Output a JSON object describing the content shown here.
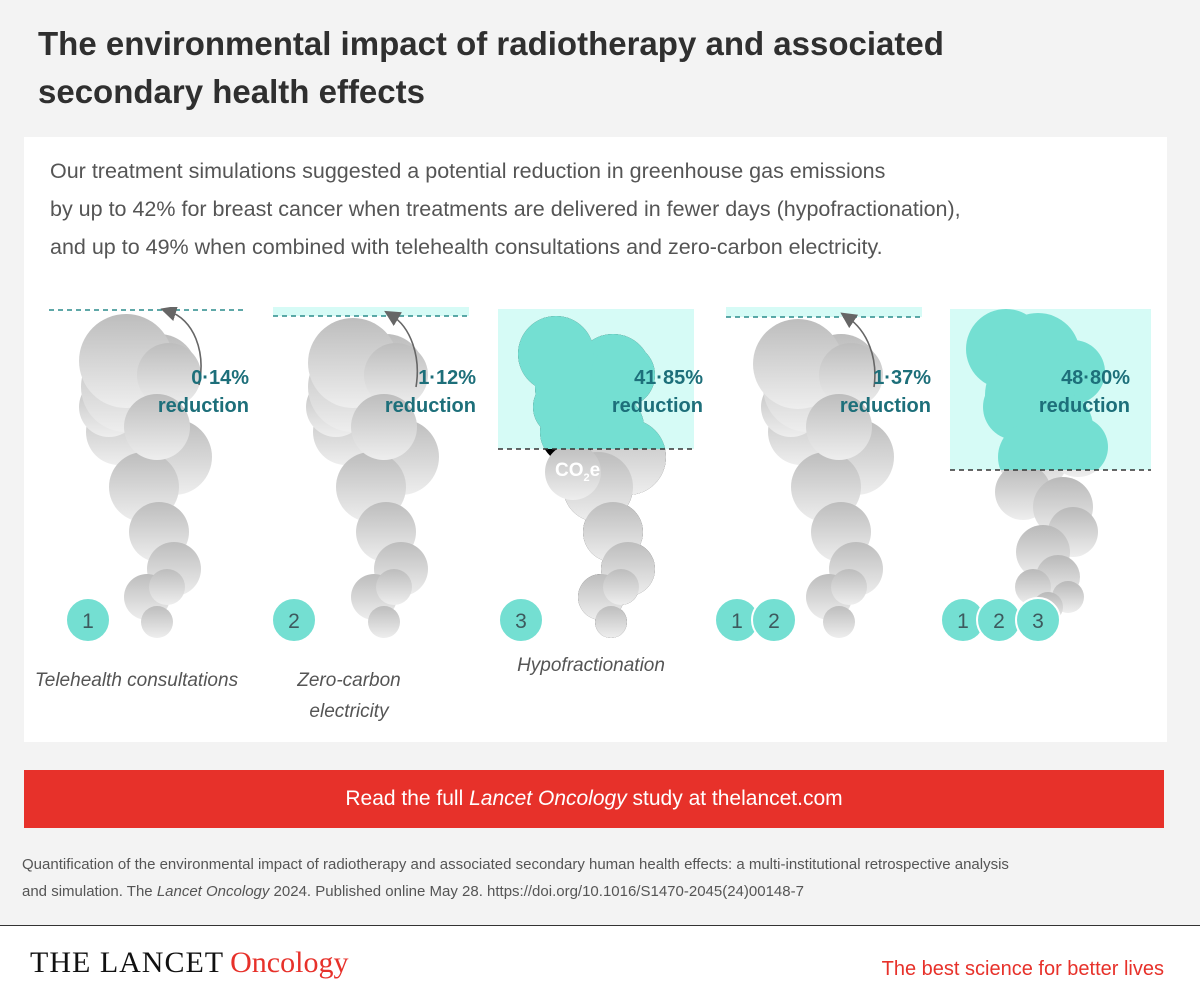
{
  "title": "The environmental impact of radiotherapy and associated secondary health effects",
  "intro": {
    "line1": "Our treatment simulations suggested a potential reduction in greenhouse gas emissions",
    "line2": "by up to 42% for breast cancer when treatments are delivered in fewer days (hypofractionation),",
    "line3": "and up to 49% when combined with telehealth consultations and zero-carbon electricity."
  },
  "co2_label": "CO",
  "co2_sub": "2",
  "co2_suffix": "e",
  "panels": [
    {
      "percent": "0·14%",
      "reduction_label": "reduction",
      "badges": [
        "1"
      ],
      "label": "Telehealth consultations"
    },
    {
      "percent": "1·12%",
      "reduction_label": "reduction",
      "badges": [
        "2"
      ],
      "label": "Zero-carbon electricity"
    },
    {
      "percent": "41·85%",
      "reduction_label": "reduction",
      "badges": [
        "3"
      ],
      "label": "Hypofractionation"
    },
    {
      "percent": "1·37%",
      "reduction_label": "reduction",
      "badges": [
        "1",
        "2"
      ],
      "label": ""
    },
    {
      "percent": "48·80%",
      "reduction_label": "reduction",
      "badges": [
        "1",
        "2",
        "3"
      ],
      "label": ""
    }
  ],
  "cta": {
    "prefix": "Read the full ",
    "journal": "Lancet Oncology",
    "suffix": " study at thelancet.com"
  },
  "citation": {
    "line1": "Quantification of the environmental impact of radiotherapy and associated secondary human health effects: a multi-institutional retrospective analysis",
    "line2_prefix": "and simulation. The ",
    "line2_journal": "Lancet Oncology",
    "line2_suffix": " 2024. Published online May 28. https://doi.org/10.1016/S1470-2045(24)00148-7"
  },
  "footer": {
    "brand_main": "THE LANCET",
    "brand_sub": "Oncology",
    "tagline": "The best science for better lives"
  },
  "colors": {
    "teal": "#74dfd2",
    "teal_light": "#d6fbf6",
    "smoke": "#c4c4c4",
    "accent_red": "#e7312a",
    "text_teal": "#1d6f7a"
  }
}
